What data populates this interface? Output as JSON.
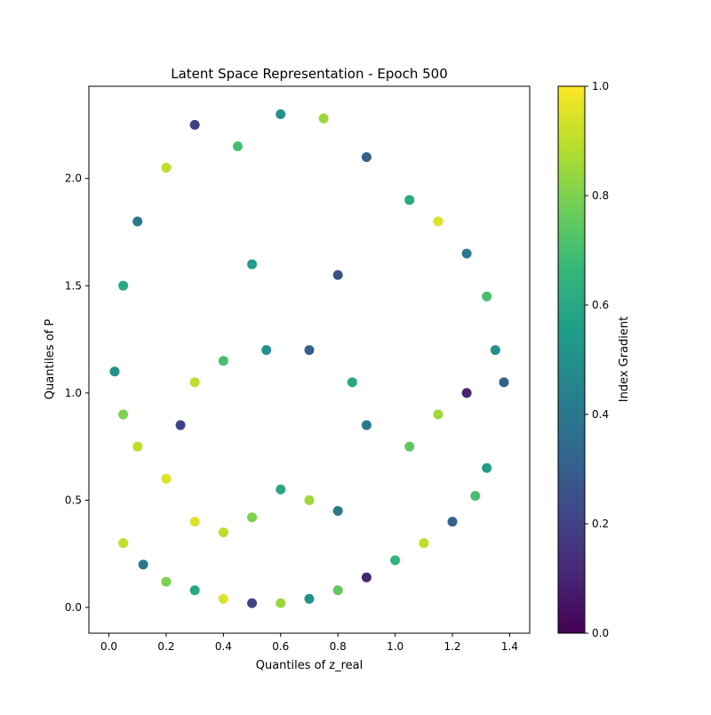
{
  "chart_data": {
    "type": "scatter",
    "title": "Latent Space Representation - Epoch 500",
    "xlabel": "Quantiles of z_real",
    "ylabel": "Quantiles of P",
    "xlim": [
      -0.07,
      1.47
    ],
    "ylim": [
      -0.12,
      2.43
    ],
    "x_ticks": [
      0.0,
      0.2,
      0.4,
      0.6,
      0.8,
      1.0,
      1.2,
      1.4
    ],
    "x_tick_labels": [
      "0.0",
      "0.2",
      "0.4",
      "0.6",
      "0.8",
      "1.0",
      "1.2",
      "1.4"
    ],
    "y_ticks": [
      0.0,
      0.5,
      1.0,
      1.5,
      2.0
    ],
    "y_tick_labels": [
      "0.0",
      "0.5",
      "1.0",
      "1.5",
      "2.0"
    ],
    "grid": false,
    "legend": "none",
    "colormap": "viridis",
    "colorbar": {
      "label": "Index Gradient",
      "range": [
        0.0,
        1.0
      ],
      "ticks": [
        0.0,
        0.2,
        0.4,
        0.6,
        0.8,
        1.0
      ],
      "tick_labels": [
        "0.0",
        "0.2",
        "0.4",
        "0.6",
        "0.8",
        "1.0"
      ]
    },
    "colormap_stops": [
      "#440154",
      "#482878",
      "#3e4989",
      "#31688e",
      "#26828e",
      "#1f9e89",
      "#35b779",
      "#6ece58",
      "#b5de2b",
      "#fde725"
    ],
    "marker_color_range": [
      0.0,
      1.0
    ],
    "points": [
      {
        "x": 0.05,
        "y": 0.3,
        "c": 0.9
      },
      {
        "x": 0.12,
        "y": 0.2,
        "c": 0.4
      },
      {
        "x": 0.2,
        "y": 0.12,
        "c": 0.8
      },
      {
        "x": 0.3,
        "y": 0.08,
        "c": 0.6
      },
      {
        "x": 0.4,
        "y": 0.04,
        "c": 0.95
      },
      {
        "x": 0.5,
        "y": 0.02,
        "c": 0.2
      },
      {
        "x": 0.6,
        "y": 0.02,
        "c": 0.85
      },
      {
        "x": 0.7,
        "y": 0.04,
        "c": 0.5
      },
      {
        "x": 0.8,
        "y": 0.08,
        "c": 0.75
      },
      {
        "x": 0.9,
        "y": 0.14,
        "c": 0.1
      },
      {
        "x": 1.0,
        "y": 0.22,
        "c": 0.65
      },
      {
        "x": 1.1,
        "y": 0.3,
        "c": 0.9
      },
      {
        "x": 1.2,
        "y": 0.4,
        "c": 0.3
      },
      {
        "x": 1.28,
        "y": 0.52,
        "c": 0.7
      },
      {
        "x": 1.32,
        "y": 0.65,
        "c": 0.55
      },
      {
        "x": 0.3,
        "y": 0.4,
        "c": 0.95
      },
      {
        "x": 0.4,
        "y": 0.35,
        "c": 0.9
      },
      {
        "x": 0.5,
        "y": 0.42,
        "c": 0.8
      },
      {
        "x": 0.6,
        "y": 0.55,
        "c": 0.6
      },
      {
        "x": 0.7,
        "y": 0.5,
        "c": 0.85
      },
      {
        "x": 0.8,
        "y": 0.45,
        "c": 0.4
      },
      {
        "x": 0.02,
        "y": 1.1,
        "c": 0.5
      },
      {
        "x": 0.05,
        "y": 0.9,
        "c": 0.8
      },
      {
        "x": 0.1,
        "y": 0.75,
        "c": 0.9
      },
      {
        "x": 0.2,
        "y": 0.6,
        "c": 0.95
      },
      {
        "x": 0.25,
        "y": 0.85,
        "c": 0.2
      },
      {
        "x": 0.3,
        "y": 1.05,
        "c": 0.9
      },
      {
        "x": 0.4,
        "y": 1.15,
        "c": 0.7
      },
      {
        "x": 0.55,
        "y": 1.2,
        "c": 0.5
      },
      {
        "x": 0.7,
        "y": 1.2,
        "c": 0.3
      },
      {
        "x": 0.85,
        "y": 1.05,
        "c": 0.6
      },
      {
        "x": 0.9,
        "y": 0.85,
        "c": 0.4
      },
      {
        "x": 1.05,
        "y": 0.75,
        "c": 0.75
      },
      {
        "x": 1.15,
        "y": 0.9,
        "c": 0.85
      },
      {
        "x": 1.25,
        "y": 1.0,
        "c": 0.1
      },
      {
        "x": 1.35,
        "y": 1.2,
        "c": 0.5
      },
      {
        "x": 1.38,
        "y": 1.05,
        "c": 0.3
      },
      {
        "x": 0.05,
        "y": 1.5,
        "c": 0.6
      },
      {
        "x": 0.1,
        "y": 1.8,
        "c": 0.4
      },
      {
        "x": 0.2,
        "y": 2.05,
        "c": 0.9
      },
      {
        "x": 0.3,
        "y": 2.25,
        "c": 0.2
      },
      {
        "x": 0.45,
        "y": 2.15,
        "c": 0.7
      },
      {
        "x": 0.6,
        "y": 2.3,
        "c": 0.5
      },
      {
        "x": 0.75,
        "y": 2.28,
        "c": 0.85
      },
      {
        "x": 0.9,
        "y": 2.1,
        "c": 0.3
      },
      {
        "x": 1.05,
        "y": 1.9,
        "c": 0.6
      },
      {
        "x": 1.15,
        "y": 1.8,
        "c": 0.95
      },
      {
        "x": 1.25,
        "y": 1.65,
        "c": 0.4
      },
      {
        "x": 1.32,
        "y": 1.45,
        "c": 0.7
      },
      {
        "x": 0.5,
        "y": 1.6,
        "c": 0.55
      },
      {
        "x": 0.8,
        "y": 1.55,
        "c": 0.25
      }
    ]
  }
}
